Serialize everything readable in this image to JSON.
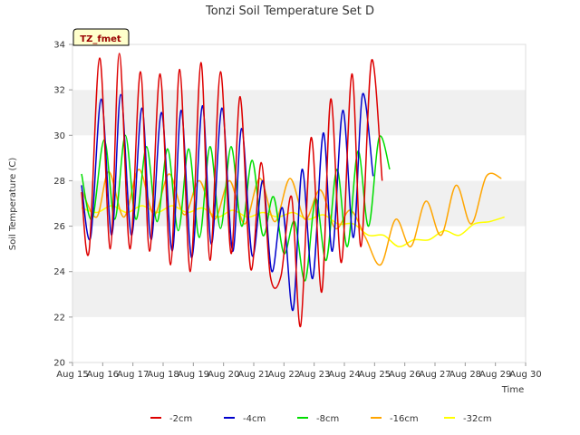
{
  "chart_data": {
    "type": "line",
    "title": "Tonzi Soil Temperature Set D",
    "xlabel": "Time",
    "ylabel": "Soil Temperature (C)",
    "badge": "TZ_fmet",
    "xlim": [
      15,
      30
    ],
    "ylim": [
      20,
      34
    ],
    "x_ticks": [
      {
        "v": 15,
        "label": "Aug 15"
      },
      {
        "v": 16,
        "label": "Aug 16"
      },
      {
        "v": 17,
        "label": "Aug 17"
      },
      {
        "v": 18,
        "label": "Aug 18"
      },
      {
        "v": 19,
        "label": "Aug 19"
      },
      {
        "v": 20,
        "label": "Aug 20"
      },
      {
        "v": 21,
        "label": "Aug 21"
      },
      {
        "v": 22,
        "label": "Aug 22"
      },
      {
        "v": 23,
        "label": "Aug 23"
      },
      {
        "v": 24,
        "label": "Aug 24"
      },
      {
        "v": 25,
        "label": "Aug 25"
      },
      {
        "v": 26,
        "label": "Aug 26"
      },
      {
        "v": 27,
        "label": "Aug 27"
      },
      {
        "v": 28,
        "label": "Aug 28"
      },
      {
        "v": 29,
        "label": "Aug 29"
      },
      {
        "v": 30,
        "label": "Aug 30"
      }
    ],
    "y_ticks": [
      "20",
      "22",
      "24",
      "26",
      "28",
      "30",
      "32",
      "34"
    ],
    "grid": "horizontal bands",
    "legend_position": "bottom",
    "series": [
      {
        "name": "-2cm",
        "color": "#dd0000",
        "x": [
          15.3,
          15.55,
          15.9,
          16.25,
          16.55,
          16.9,
          17.25,
          17.55,
          17.9,
          18.25,
          18.55,
          18.9,
          19.25,
          19.55,
          19.9,
          20.25,
          20.55,
          20.9,
          21.25,
          21.55,
          21.9,
          22.25,
          22.55,
          22.9,
          23.25,
          23.55,
          23.9,
          24.25,
          24.55,
          24.9,
          25.25,
          25.6,
          25.9,
          26.25,
          26.6,
          26.9,
          27.25,
          27.55,
          27.9,
          28.25,
          28.55,
          28.9,
          29.25,
          29.55
        ],
        "y": [
          27.5,
          24.9,
          33.4,
          25.0,
          33.6,
          25.0,
          32.8,
          24.9,
          32.7,
          24.3,
          32.9,
          24.0,
          33.2,
          24.5,
          32.8,
          24.8,
          31.7,
          24.1,
          28.8,
          23.8,
          23.8,
          27.3,
          21.6,
          29.9,
          23.1,
          31.6,
          24.4,
          32.7,
          25.1,
          33.3,
          28.0,
          null,
          null,
          null,
          null,
          null,
          null,
          null,
          null,
          null,
          null,
          null,
          null,
          null
        ]
      },
      {
        "name": "-4cm",
        "color": "#0000cc",
        "x": [
          15.3,
          15.6,
          15.95,
          16.3,
          16.6,
          16.95,
          17.3,
          17.6,
          17.95,
          18.3,
          18.6,
          18.95,
          19.3,
          19.6,
          19.95,
          20.3,
          20.6,
          20.95,
          21.3,
          21.6,
          21.95,
          22.3,
          22.6,
          22.95,
          23.3,
          23.6,
          23.95,
          24.3,
          24.6,
          24.95,
          25.3
        ],
        "y": [
          27.8,
          25.5,
          31.6,
          25.6,
          31.8,
          25.6,
          31.2,
          25.4,
          31.0,
          24.9,
          31.1,
          24.6,
          31.3,
          25.2,
          31.2,
          24.9,
          30.3,
          24.7,
          28.0,
          24.0,
          26.8,
          22.3,
          28.5,
          23.7,
          30.1,
          24.9,
          31.1,
          25.5,
          31.8,
          28.2,
          null
        ]
      },
      {
        "name": "-8cm",
        "color": "#00dd00",
        "x": [
          15.3,
          15.65,
          16.05,
          16.4,
          16.75,
          17.1,
          17.45,
          17.8,
          18.15,
          18.5,
          18.85,
          19.2,
          19.55,
          19.9,
          20.25,
          20.6,
          20.95,
          21.3,
          21.65,
          22.0,
          22.35,
          22.7,
          23.05,
          23.4,
          23.75,
          24.1,
          24.45,
          24.8,
          25.15,
          25.5,
          25.85,
          26.2,
          26.55,
          26.9,
          27.25,
          27.6,
          27.95,
          28.3,
          28.65,
          29.0,
          29.3
        ],
        "y": [
          28.3,
          26.3,
          29.8,
          26.3,
          30.0,
          26.3,
          29.5,
          26.2,
          29.4,
          25.8,
          29.4,
          25.5,
          29.5,
          25.9,
          29.5,
          26.0,
          28.9,
          25.6,
          27.3,
          24.8,
          26.2,
          23.6,
          27.2,
          24.5,
          28.5,
          25.1,
          29.3,
          26.0,
          29.9,
          28.5,
          null,
          null,
          null,
          null,
          null,
          null,
          null,
          null,
          null,
          null,
          null
        ]
      },
      {
        "name": "-16cm",
        "color": "#ffa500",
        "x": [
          15.3,
          15.8,
          16.2,
          16.7,
          17.2,
          17.7,
          18.2,
          18.7,
          19.2,
          19.7,
          20.2,
          20.7,
          21.2,
          21.7,
          22.2,
          22.7,
          23.2,
          23.7,
          24.2,
          24.7,
          25.2,
          25.7,
          26.2,
          26.7,
          27.2,
          27.7,
          28.2,
          28.7,
          29.2,
          29.4
        ],
        "y": [
          27.6,
          26.4,
          28.4,
          26.4,
          28.5,
          26.5,
          28.3,
          26.5,
          28.0,
          26.3,
          28.0,
          26.1,
          28.1,
          26.2,
          28.1,
          26.3,
          27.6,
          25.9,
          26.7,
          25.5,
          24.3,
          26.3,
          25.1,
          27.1,
          25.6,
          27.8,
          26.1,
          28.2,
          28.1,
          null
        ]
      },
      {
        "name": "-32cm",
        "color": "#ffff00",
        "x": [
          15.3,
          15.8,
          16.3,
          16.8,
          17.3,
          17.8,
          18.3,
          18.8,
          19.3,
          19.8,
          20.3,
          20.8,
          21.3,
          21.8,
          22.3,
          22.8,
          23.3,
          23.8,
          24.3,
          24.8,
          25.3,
          25.8,
          26.3,
          26.8,
          27.3,
          27.8,
          28.3,
          28.8,
          29.3
        ],
        "y": [
          26.8,
          26.6,
          26.9,
          26.6,
          26.9,
          26.6,
          26.9,
          26.6,
          26.8,
          26.4,
          26.7,
          26.4,
          26.6,
          26.4,
          26.6,
          26.3,
          26.5,
          26.1,
          26.1,
          25.6,
          25.6,
          25.1,
          25.4,
          25.4,
          25.8,
          25.6,
          26.1,
          26.2,
          26.4
        ]
      }
    ]
  }
}
